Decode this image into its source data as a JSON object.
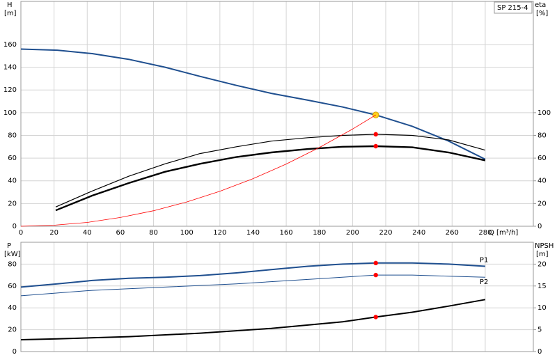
{
  "chart_data": [
    {
      "type": "line",
      "y_label": "H",
      "y_unit": "[m]",
      "y2_label": "eta",
      "y2_unit": "[%]",
      "x_label": "Q [m³/h]",
      "annotation": "SP 215-4",
      "xlim": [
        0,
        309
      ],
      "xticks": [
        0,
        20,
        40,
        60,
        80,
        100,
        120,
        140,
        160,
        180,
        200,
        220,
        240,
        260,
        280
      ],
      "ylim": [
        0,
        198
      ],
      "yticks": [
        0,
        20,
        40,
        60,
        80,
        100,
        120,
        140,
        160
      ],
      "y2lim": [
        0,
        198
      ],
      "y2ticks": [
        0,
        20,
        40,
        60,
        80,
        100
      ],
      "grid": true,
      "highlight_x": 214,
      "series": [
        {
          "color": "#1f4f8f",
          "width": 2,
          "point_color": "#ffd21f",
          "x": [
            0,
            22,
            43,
            65,
            87,
            108,
            130,
            151,
            173,
            194,
            214,
            236,
            258,
            280
          ],
          "values": [
            156,
            155,
            152,
            147,
            140,
            132,
            124,
            117,
            111,
            105,
            98,
            88,
            75,
            59
          ]
        },
        {
          "color": "#000000",
          "width": 1.2,
          "axis": "y2",
          "point_color": "#ff0000",
          "x": [
            21,
            43,
            65,
            87,
            108,
            130,
            151,
            173,
            194,
            214,
            236,
            258,
            280
          ],
          "values": [
            17,
            31,
            44,
            55,
            64,
            70,
            75,
            78,
            80,
            81,
            80,
            76,
            67
          ]
        },
        {
          "color": "#000000",
          "width": 2.4,
          "axis": "y2",
          "point_color": "#ff0000",
          "x": [
            21,
            43,
            65,
            87,
            108,
            130,
            151,
            173,
            194,
            214,
            236,
            258,
            280
          ],
          "values": [
            14,
            27,
            38,
            48,
            55,
            61,
            65,
            68,
            70,
            70.5,
            69.5,
            65,
            58
          ]
        },
        {
          "color": "#ff0000",
          "width": 0.8,
          "x": [
            0,
            20,
            40,
            60,
            80,
            100,
            120,
            140,
            160,
            180,
            200,
            214
          ],
          "values": [
            0,
            0.9,
            3.4,
            7.7,
            13.7,
            21.4,
            30.8,
            41.9,
            54.8,
            69.3,
            85.6,
            98
          ]
        }
      ]
    },
    {
      "type": "line",
      "y_label": "P",
      "y_unit": "[kW]",
      "y2_label": "NPSH",
      "y2_unit": "[m]",
      "xlim": [
        0,
        309
      ],
      "xticks": [
        0,
        20,
        40,
        60,
        80,
        100,
        120,
        140,
        160,
        180,
        200,
        220,
        240,
        260,
        280
      ],
      "x_tick_labels": false,
      "ylim": [
        0,
        100
      ],
      "yticks": [
        0,
        20,
        40,
        60,
        80
      ],
      "y2lim": [
        0,
        25
      ],
      "y2ticks": [
        0,
        5,
        10,
        15,
        20
      ],
      "grid": true,
      "highlight_x": 214,
      "series": [
        {
          "name": "P1",
          "color": "#1f4f8f",
          "width": 2,
          "point_color": "#ff0000",
          "x": [
            0,
            22,
            43,
            65,
            87,
            108,
            130,
            151,
            173,
            194,
            214,
            236,
            258,
            280
          ],
          "values": [
            59,
            62,
            65,
            67,
            68,
            69.5,
            72,
            75,
            78,
            80,
            81,
            81,
            80,
            78
          ]
        },
        {
          "name": "P2",
          "color": "#1f4f8f",
          "width": 1,
          "point_color": "#ff0000",
          "x": [
            0,
            43,
            87,
            130,
            173,
            214,
            236,
            258,
            280
          ],
          "values": [
            51,
            56,
            59,
            62,
            66,
            70,
            70,
            69,
            68
          ]
        },
        {
          "color": "#000000",
          "width": 2,
          "axis": "y2",
          "point_color": "#ff0000",
          "x": [
            0,
            22,
            65,
            108,
            151,
            194,
            214,
            236,
            258,
            280
          ],
          "values": [
            2.7,
            2.9,
            3.4,
            4.2,
            5.3,
            6.8,
            7.9,
            9.0,
            10.4,
            11.9
          ]
        }
      ]
    }
  ]
}
